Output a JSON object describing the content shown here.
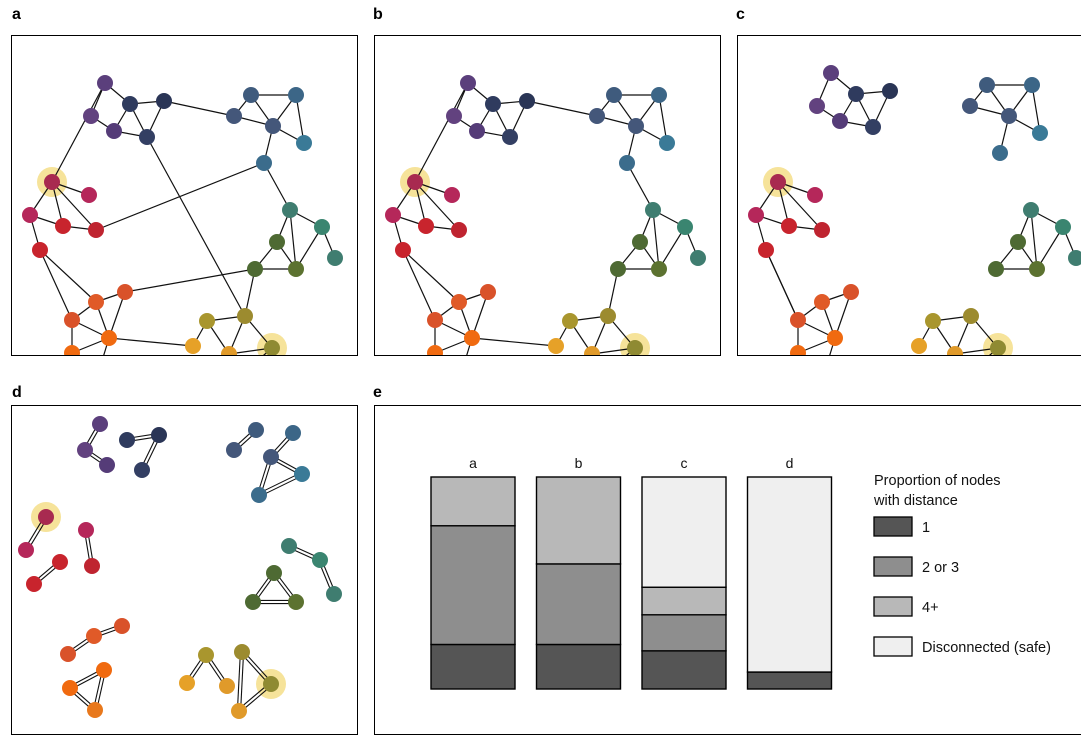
{
  "panel_labels": {
    "a": "a",
    "b": "b",
    "c": "c",
    "d": "d",
    "e": "e"
  },
  "colors": {
    "highlight": "#f6e39a",
    "bar_1": "#555555",
    "bar_2or3": "#8e8e8e",
    "bar_4plus": "#b8b8b8",
    "bar_disconnected": "#efefef"
  },
  "chart_data": {
    "type": "bar",
    "stacked": true,
    "categories": [
      "a",
      "b",
      "c",
      "d"
    ],
    "series": [
      {
        "name": "1",
        "values": [
          0.21,
          0.21,
          0.18,
          0.08
        ]
      },
      {
        "name": "2 or 3",
        "values": [
          0.56,
          0.38,
          0.17,
          0.0
        ]
      },
      {
        "name": "4+",
        "values": [
          0.23,
          0.41,
          0.13,
          0.0
        ]
      },
      {
        "name": "Disconnected (safe)",
        "values": [
          0.0,
          0.0,
          0.52,
          0.92
        ]
      }
    ],
    "ylim": [
      0,
      1
    ],
    "legend_title": "Proportion of nodes with distance",
    "legend_title_lines": [
      "Proportion of nodes",
      "with distance"
    ],
    "legend_position": "right",
    "grid": false
  }
}
